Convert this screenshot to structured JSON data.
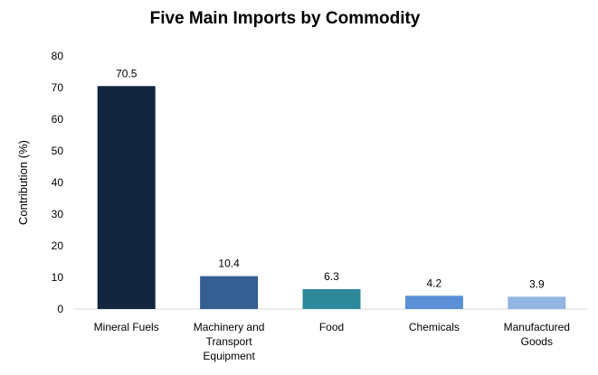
{
  "chart_data": {
    "type": "bar",
    "title": "Five Main Imports by Commodity",
    "xlabel": "",
    "ylabel": "Contribution (%)",
    "ylim": [
      0,
      80
    ],
    "yticks": [
      0,
      10,
      20,
      30,
      40,
      50,
      60,
      70,
      80
    ],
    "grid": false,
    "categories": [
      [
        "Mineral Fuels"
      ],
      [
        "Machinery and",
        "Transport",
        "Equipment"
      ],
      [
        "Food"
      ],
      [
        "Chemicals"
      ],
      [
        "Manufactured",
        "Goods"
      ]
    ],
    "values": [
      70.5,
      10.4,
      6.3,
      4.2,
      3.9
    ],
    "data_labels": [
      "70.5",
      "10.4",
      "6.3",
      "4.2",
      "3.9"
    ],
    "colors": [
      "#13263f",
      "#355e92",
      "#2e8a9a",
      "#5b8fd6",
      "#93b5e1"
    ]
  }
}
